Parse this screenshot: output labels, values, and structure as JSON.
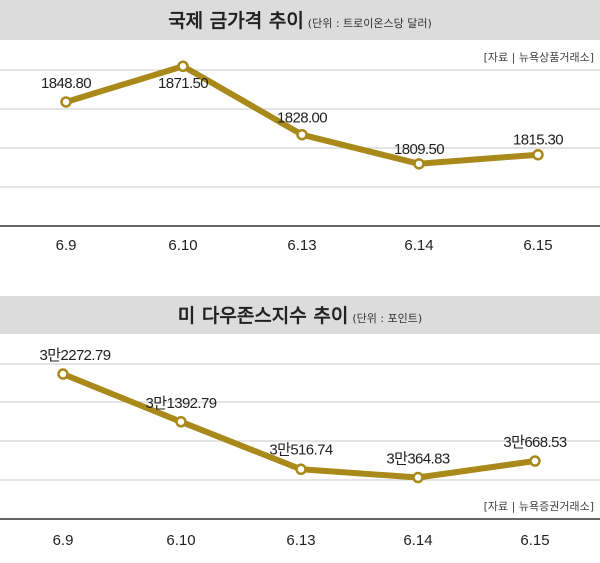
{
  "chart_data": [
    {
      "type": "line",
      "title": "국제 금가격 추이",
      "unit_note": "(단위 : 트로이온스당 달러)",
      "source": "[자료 | 뉴욕상품거래소]",
      "categories": [
        "6.9",
        "6.10",
        "6.13",
        "6.14",
        "6.15"
      ],
      "values": [
        1848.8,
        1871.5,
        1828.0,
        1809.5,
        1815.3
      ],
      "value_labels": [
        "1848.80",
        "1871.50",
        "1828.00",
        "1809.50",
        "1815.30"
      ],
      "ylim": [
        1770,
        1885
      ],
      "grid": true,
      "legend": "none",
      "line_color": "#a8891a",
      "marker_fill": "#ffffff"
    },
    {
      "type": "line",
      "title": "미 다우존스지수 추이",
      "unit_note": "(단위 : 포인트)",
      "source": "[자료 | 뉴욕증권거래소]",
      "categories": [
        "6.9",
        "6.10",
        "6.13",
        "6.14",
        "6.15"
      ],
      "values": [
        32272.79,
        31392.79,
        30516.74,
        30364.83,
        30668.53
      ],
      "value_labels": [
        "3만2272.79",
        "3만1392.79",
        "3만516.74",
        "3만364.83",
        "3만668.53"
      ],
      "ylim": [
        29600,
        32900
      ],
      "grid": true,
      "legend": "none",
      "line_color": "#a8891a",
      "marker_fill": "#ffffff"
    }
  ]
}
